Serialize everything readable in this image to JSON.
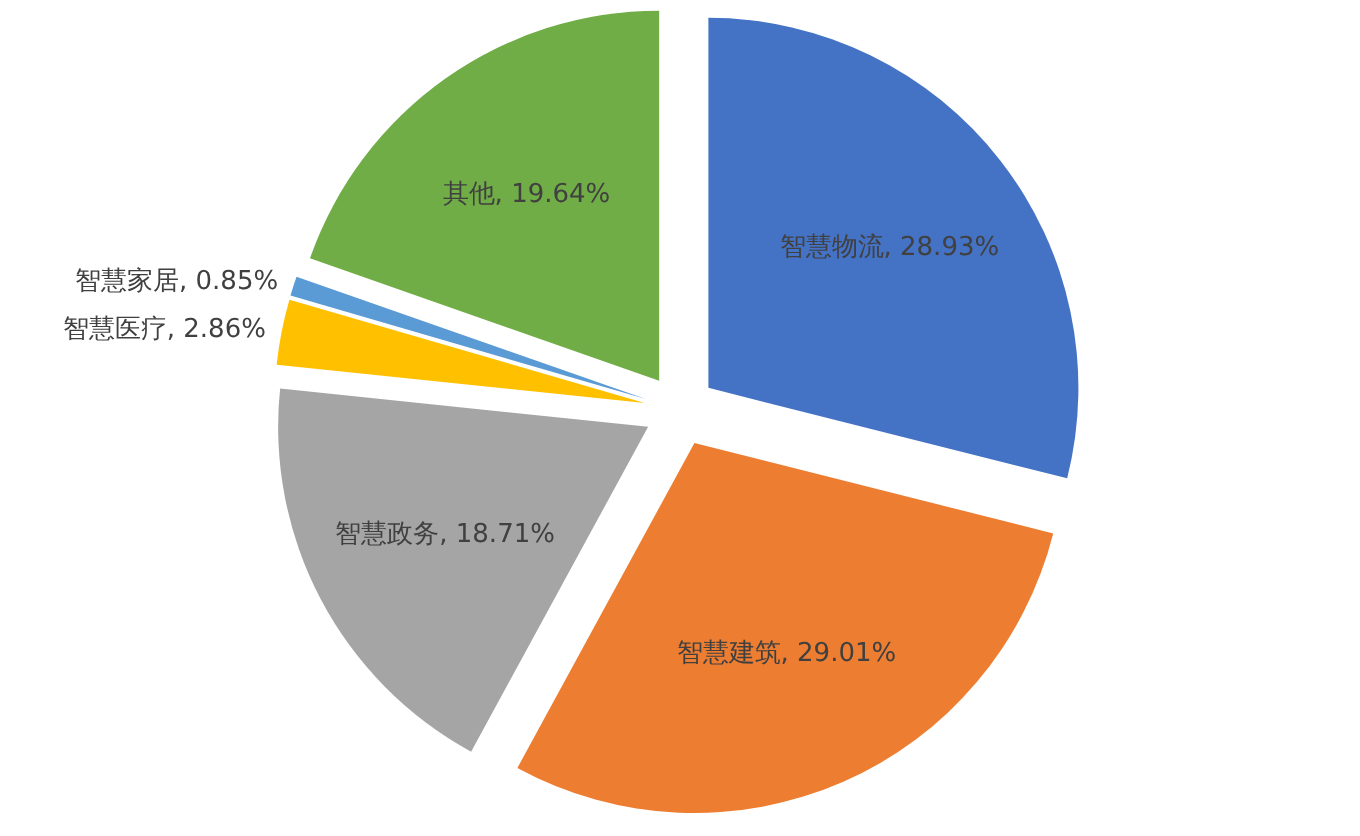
{
  "chart_data": {
    "type": "pie",
    "categories": [
      "智慧物流",
      "智慧建筑",
      "智慧政务",
      "智慧医疗",
      "智慧家居",
      "其他"
    ],
    "values": [
      28.93,
      29.01,
      18.71,
      2.86,
      0.85,
      19.64
    ],
    "colors": [
      "#4472c4",
      "#ed7d31",
      "#a5a5a5",
      "#ffc000",
      "#5b9bd5",
      "#70ad47"
    ],
    "value_labels": [
      "28.93%",
      "29.01%",
      "18.71%",
      "2.86%",
      "0.85%",
      "19.64%"
    ]
  }
}
